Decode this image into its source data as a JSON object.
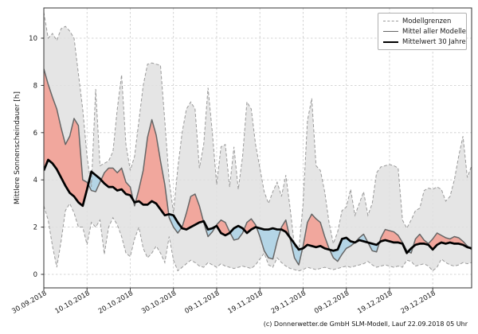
{
  "figure": {
    "caption": "(c) Donnerwetter.de GmbH SLM-Modell, Lauf 22.09.2018 05 Uhr"
  },
  "chart_data": {
    "type": "line",
    "title": "",
    "xlabel": "",
    "ylabel": "Mittlere Sonnenscheindauer [h]",
    "grid": true,
    "legend_position": "top-right",
    "legend": [
      "Modellgrenzen",
      "Mittel aller Modelle",
      "Mittelwert 30 Jahre"
    ],
    "x_tick_labels": [
      "30.09.2018",
      "10.10.2018",
      "20.10.2018",
      "30.10.2018",
      "09.11.2018",
      "19.11.2018",
      "29.11.2018",
      "09.12.2018",
      "19.12.2018",
      "29.12.2018"
    ],
    "x_tick_days": [
      0,
      10,
      20,
      30,
      40,
      50,
      60,
      70,
      80,
      90
    ],
    "days_total": 99,
    "y_ticks": [
      0,
      2,
      4,
      6,
      8,
      10
    ],
    "ylim": [
      -0.57,
      11.28
    ],
    "unit": "h",
    "series": [
      {
        "name": "Modellgrenzen (obere Grenze)",
        "style": "dashed",
        "values": [
          11.1,
          10.0,
          10.2,
          9.9,
          10.4,
          10.5,
          10.3,
          10.0,
          8.5,
          7.0,
          5.0,
          3.7,
          7.85,
          4.6,
          4.7,
          4.8,
          5.2,
          7.0,
          8.45,
          5.5,
          4.4,
          5.0,
          6.5,
          8.0,
          8.9,
          8.95,
          8.9,
          8.85,
          6.5,
          4.0,
          2.6,
          4.5,
          6.0,
          7.0,
          7.3,
          7.0,
          4.5,
          5.5,
          7.9,
          6.0,
          3.8,
          5.4,
          5.5,
          3.7,
          5.4,
          3.6,
          5.0,
          7.3,
          7.0,
          5.5,
          4.5,
          3.5,
          3.0,
          3.5,
          3.9,
          3.3,
          4.2,
          2.8,
          1.2,
          1.0,
          3.0,
          6.5,
          7.45,
          4.6,
          4.4,
          3.5,
          2.2,
          1.3,
          1.8,
          2.7,
          2.85,
          3.6,
          2.5,
          3.0,
          3.5,
          2.5,
          3.0,
          4.3,
          4.55,
          4.6,
          4.65,
          4.6,
          4.5,
          2.3,
          1.95,
          2.3,
          2.7,
          2.8,
          3.55,
          3.65,
          3.6,
          3.7,
          3.6,
          3.1,
          3.3,
          4.0,
          5.0,
          5.85,
          4.1,
          4.6
        ]
      },
      {
        "name": "Modellgrenzen (untere Grenze)",
        "style": "dashed",
        "values": [
          2.9,
          2.3,
          1.2,
          0.3,
          1.4,
          2.7,
          3.0,
          2.6,
          2.0,
          2.0,
          1.26,
          2.2,
          2.0,
          2.3,
          0.85,
          2.0,
          2.4,
          2.1,
          1.6,
          0.9,
          0.75,
          1.5,
          2.0,
          1.1,
          0.7,
          0.9,
          1.2,
          0.9,
          0.5,
          1.6,
          0.6,
          0.15,
          0.3,
          0.45,
          0.6,
          0.5,
          0.35,
          0.3,
          0.5,
          0.4,
          0.3,
          0.45,
          0.35,
          0.3,
          0.25,
          0.3,
          0.35,
          0.3,
          0.25,
          0.4,
          0.65,
          0.9,
          0.4,
          0.3,
          0.7,
          0.5,
          0.35,
          0.25,
          0.2,
          0.15,
          0.2,
          0.3,
          0.25,
          0.2,
          0.25,
          0.3,
          0.25,
          0.2,
          0.25,
          0.3,
          0.35,
          0.3,
          0.35,
          0.4,
          0.45,
          0.55,
          0.4,
          0.3,
          0.35,
          0.4,
          0.35,
          0.3,
          0.35,
          0.3,
          0.6,
          0.55,
          0.35,
          0.4,
          0.45,
          0.35,
          0.15,
          0.3,
          0.65,
          0.5,
          0.4,
          0.35,
          0.4,
          0.5,
          0.45,
          0.5
        ]
      },
      {
        "name": "Mittel aller Modelle",
        "style": "solid",
        "values": [
          8.7,
          8.05,
          7.5,
          7.0,
          6.2,
          5.5,
          5.85,
          6.6,
          6.3,
          4.0,
          3.9,
          3.55,
          3.5,
          3.9,
          4.3,
          4.5,
          4.5,
          4.3,
          4.5,
          3.9,
          3.7,
          2.9,
          3.6,
          4.4,
          5.8,
          6.55,
          5.9,
          4.8,
          3.8,
          2.4,
          2.0,
          1.75,
          2.0,
          2.6,
          3.3,
          3.4,
          2.9,
          2.2,
          1.6,
          1.8,
          2.1,
          2.3,
          2.2,
          1.8,
          1.45,
          1.5,
          1.75,
          2.2,
          2.35,
          2.1,
          1.6,
          1.0,
          0.7,
          0.65,
          1.4,
          2.0,
          2.3,
          1.5,
          0.7,
          0.4,
          1.2,
          2.2,
          2.55,
          2.35,
          2.2,
          1.6,
          1.1,
          0.7,
          0.55,
          0.85,
          1.1,
          1.2,
          1.35,
          1.55,
          1.7,
          1.35,
          1.0,
          0.95,
          1.55,
          1.9,
          1.85,
          1.8,
          1.65,
          1.35,
          1.0,
          0.9,
          1.5,
          1.7,
          1.45,
          1.3,
          1.5,
          1.75,
          1.65,
          1.55,
          1.5,
          1.6,
          1.55,
          1.4,
          1.2,
          1.05
        ]
      },
      {
        "name": "Mittelwert 30 Jahre",
        "style": "solid-bold",
        "values": [
          4.4,
          4.85,
          4.7,
          4.45,
          4.1,
          3.75,
          3.45,
          3.3,
          3.05,
          2.9,
          3.6,
          4.35,
          4.2,
          4.05,
          3.85,
          3.7,
          3.7,
          3.55,
          3.6,
          3.4,
          3.35,
          3.05,
          3.1,
          2.95,
          2.95,
          3.1,
          3.0,
          2.75,
          2.5,
          2.55,
          2.5,
          2.2,
          1.95,
          1.9,
          2.0,
          2.1,
          2.2,
          2.25,
          1.9,
          1.95,
          2.05,
          1.75,
          1.65,
          1.75,
          1.95,
          2.05,
          1.95,
          1.75,
          1.9,
          2.0,
          1.95,
          1.9,
          1.9,
          1.95,
          1.9,
          1.9,
          1.8,
          1.55,
          1.3,
          1.05,
          1.1,
          1.25,
          1.2,
          1.15,
          1.2,
          1.1,
          1.05,
          1.0,
          1.05,
          1.5,
          1.55,
          1.4,
          1.35,
          1.45,
          1.4,
          1.35,
          1.3,
          1.25,
          1.4,
          1.45,
          1.4,
          1.35,
          1.35,
          1.3,
          0.9,
          1.1,
          1.25,
          1.3,
          1.3,
          1.25,
          1.05,
          1.25,
          1.35,
          1.3,
          1.35,
          1.3,
          1.3,
          1.25,
          1.15,
          1.1
        ]
      }
    ],
    "colors": {
      "band": "#e0e0e0",
      "bound_line": "#9a9a9a",
      "model_mean_line": "#666666",
      "mean30_line": "#000000",
      "fill_above": "#f1a79d",
      "fill_below": "#b4d5e6",
      "grid": "#c9c9c9",
      "spine": "#333333",
      "text": "#1a1a1a"
    }
  }
}
